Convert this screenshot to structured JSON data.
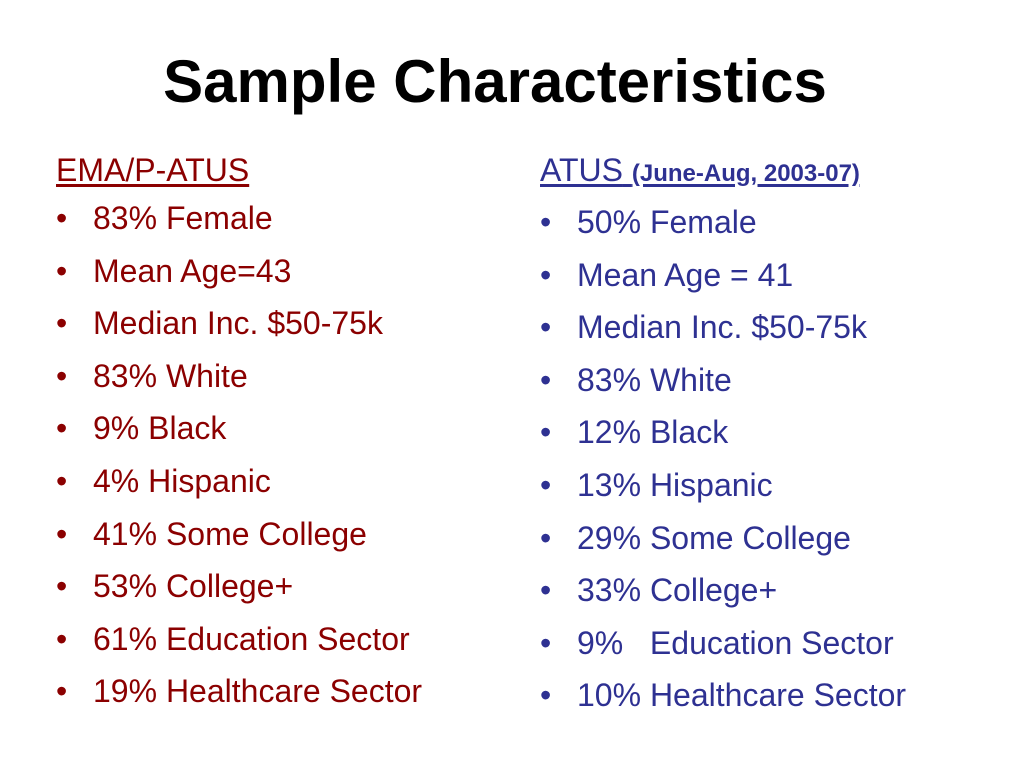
{
  "title": "Sample Characteristics",
  "colors": {
    "left_column": "#8b0000",
    "right_column": "#2e3192",
    "title": "#000000"
  },
  "left": {
    "heading": "EMA/P-ATUS",
    "items": [
      "83% Female",
      "Mean Age=43",
      "Median Inc. $50-75k",
      "83% White",
      "9% Black",
      "4% Hispanic",
      "41% Some College",
      "53% College+",
      "61% Education Sector",
      "19% Healthcare Sector"
    ]
  },
  "right": {
    "heading": "ATUS",
    "heading_sub": "(June-Aug, 2003-07)",
    "items": [
      "50% Female",
      "Mean Age = 41",
      "Median Inc. $50-75k",
      "83% White",
      "12% Black",
      "13% Hispanic",
      "29% Some College",
      "33% College+",
      "9%   Education Sector",
      "10% Healthcare Sector"
    ]
  },
  "bullet": "•"
}
